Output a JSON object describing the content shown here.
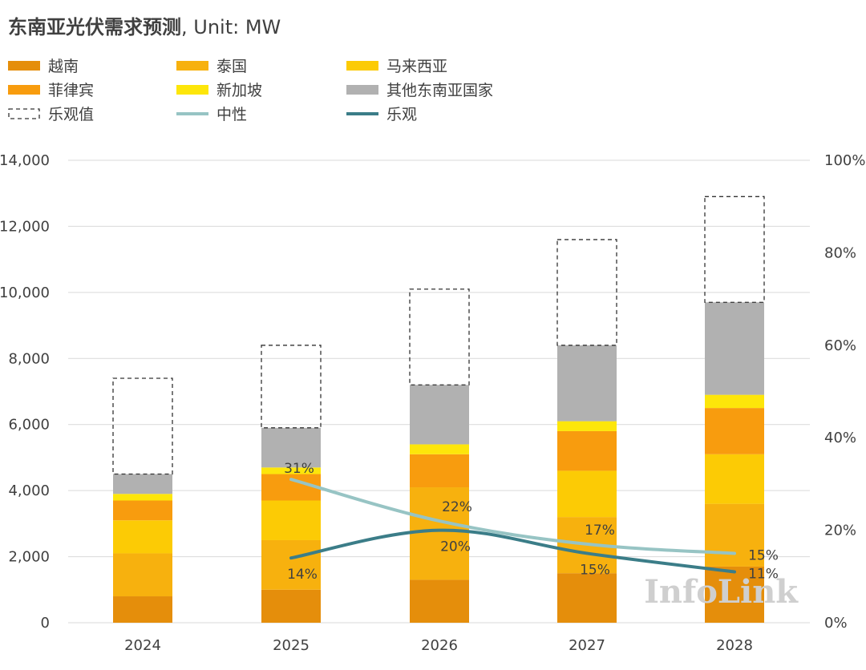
{
  "chart_data": {
    "type": "bar",
    "stacked": true,
    "title": "东南亚光伏需求预测",
    "title_unit": ", Unit: MW",
    "categories": [
      "2024",
      "2025",
      "2026",
      "2027",
      "2028"
    ],
    "ylim": [
      0,
      14000
    ],
    "yticks": [
      0,
      2000,
      4000,
      6000,
      8000,
      10000,
      12000,
      14000
    ],
    "ytick_labels": [
      "0",
      "2,000",
      "4,000",
      "6,000",
      "8,000",
      "10,000",
      "12,000",
      "14,000"
    ],
    "y2lim": [
      0,
      1
    ],
    "y2ticks": [
      0,
      0.2,
      0.4,
      0.6,
      0.8,
      1.0
    ],
    "y2tick_labels": [
      "0%",
      "20%",
      "40%",
      "60%",
      "80%",
      "100%"
    ],
    "series": [
      {
        "name": "越南",
        "color": "#e58e0b",
        "values": [
          800,
          1000,
          1300,
          1500,
          1700
        ]
      },
      {
        "name": "泰国",
        "color": "#f7b10e",
        "values": [
          1300,
          1500,
          2800,
          1700,
          1900
        ]
      },
      {
        "name": "马来西亚",
        "color": "#fccb05",
        "values": [
          1000,
          1200,
          0,
          1400,
          1500
        ]
      },
      {
        "name": "菲律宾",
        "color": "#f89c0e",
        "values": [
          600,
          800,
          1000,
          1200,
          1400
        ]
      },
      {
        "name": "新加坡",
        "color": "#fde60a",
        "values": [
          200,
          200,
          300,
          300,
          400
        ]
      },
      {
        "name": "其他东南亚国家",
        "color": "#b1b1b1",
        "values": [
          600,
          1200,
          1800,
          2300,
          2800
        ]
      },
      {
        "name": "乐观值",
        "style": "dashed-outline",
        "values": [
          2900,
          2500,
          2900,
          3200,
          3200
        ]
      }
    ],
    "lines": [
      {
        "name": "中性",
        "color": "#97c4c4",
        "axis": "right",
        "values": [
          null,
          0.31,
          0.22,
          0.17,
          0.15
        ],
        "labels": [
          "",
          "31%",
          "22%",
          "17%",
          "15%"
        ]
      },
      {
        "name": "乐观",
        "color": "#3b7d88",
        "axis": "right",
        "values": [
          null,
          0.14,
          0.2,
          0.15,
          0.11
        ],
        "labels": [
          "",
          "14%",
          "20%",
          "15%",
          "11%"
        ]
      }
    ],
    "legend_order": [
      "越南",
      "泰国",
      "马来西亚",
      "菲律宾",
      "新加坡",
      "其他东南亚国家",
      "乐观值",
      "中性",
      "乐观"
    ],
    "legend_position": "top-left"
  },
  "watermark": "InfoLink"
}
